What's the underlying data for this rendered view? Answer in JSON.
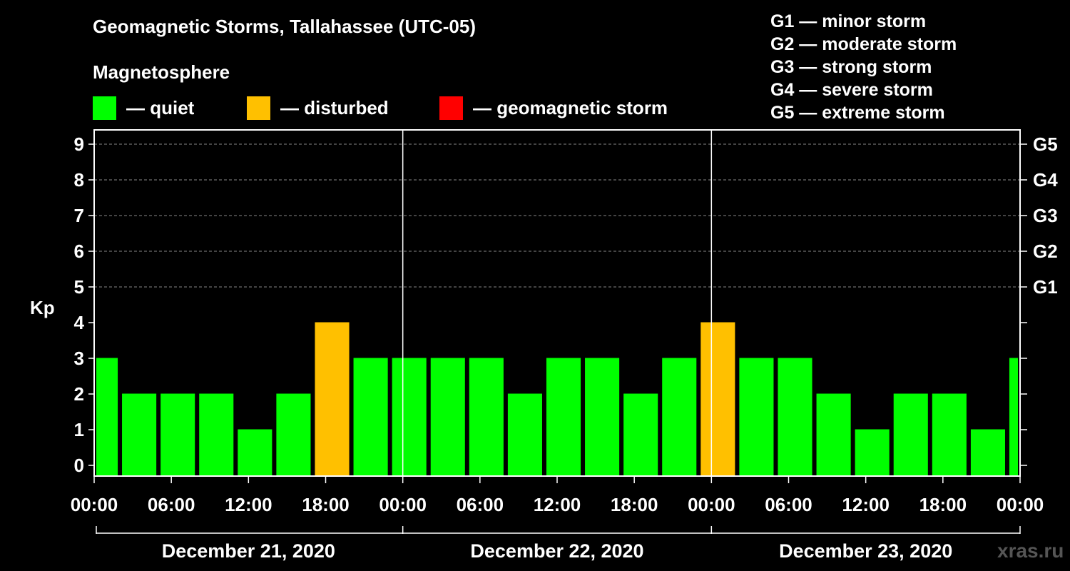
{
  "title": "Geomagnetic Storms, Tallahassee (UTC-05)",
  "section_title": "Magnetosphere",
  "legend": [
    {
      "label": "— quiet",
      "color": "#00ff00"
    },
    {
      "label": "— disturbed",
      "color": "#ffc000"
    },
    {
      "label": "— geomagnetic storm",
      "color": "#ff0000"
    }
  ],
  "storm_scale": [
    "G1 — minor storm",
    "G2 — moderate storm",
    "G3 — strong storm",
    "G4 — severe storm",
    "G5 — extreme storm"
  ],
  "watermark": "xras.ru",
  "chart_data": {
    "type": "bar",
    "ylabel": "Kp",
    "ylim": [
      0,
      9
    ],
    "y_ticks": [
      "0",
      "1",
      "2",
      "3",
      "4",
      "5",
      "6",
      "7",
      "8",
      "9"
    ],
    "right_ticks": [
      {
        "kp": 5,
        "label": "G1"
      },
      {
        "kp": 6,
        "label": "G2"
      },
      {
        "kp": 7,
        "label": "G3"
      },
      {
        "kp": 8,
        "label": "G4"
      },
      {
        "kp": 9,
        "label": "G5"
      }
    ],
    "x_tick_labels": [
      "00:00",
      "06:00",
      "12:00",
      "18:00",
      "00:00",
      "06:00",
      "12:00",
      "18:00",
      "00:00",
      "06:00",
      "12:00",
      "18:00",
      "00:00"
    ],
    "day_labels": [
      "December 21, 2020",
      "December 22, 2020",
      "December 23, 2020"
    ],
    "bar_hours": [
      0,
      2,
      5,
      8,
      11,
      14,
      17,
      20,
      23,
      26,
      29,
      32,
      35,
      38,
      41,
      44,
      47,
      50,
      53,
      56,
      59,
      62,
      65,
      68,
      71
    ],
    "values": [
      3,
      2,
      2,
      2,
      1,
      2,
      4,
      3,
      3,
      3,
      3,
      2,
      3,
      3,
      2,
      3,
      4,
      3,
      3,
      2,
      1,
      2,
      2,
      1,
      3
    ],
    "status": [
      "quiet",
      "quiet",
      "quiet",
      "quiet",
      "quiet",
      "quiet",
      "disturbed",
      "quiet",
      "quiet",
      "quiet",
      "quiet",
      "quiet",
      "quiet",
      "quiet",
      "quiet",
      "quiet",
      "disturbed",
      "quiet",
      "quiet",
      "quiet",
      "quiet",
      "quiet",
      "quiet",
      "quiet",
      "quiet"
    ],
    "status_colors": {
      "quiet": "#00ff00",
      "disturbed": "#ffc000",
      "storm": "#ff0000"
    },
    "grid": "dashed at Kp 5–9"
  }
}
